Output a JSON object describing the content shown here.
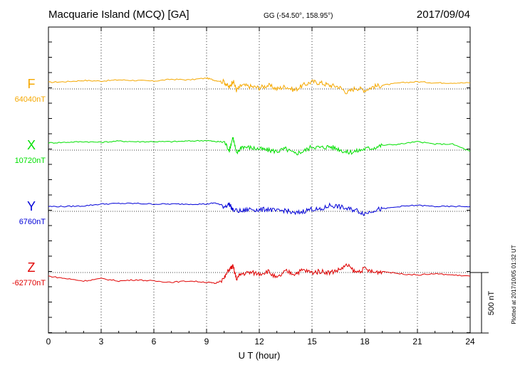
{
  "header": {
    "station": "Macquarie Island (MCQ)  [GA]",
    "coords": "GG (-54.50°, 158.95°)",
    "date": "2017/09/04"
  },
  "footer": {
    "plotted": "Plotted at 2017/10/05 01:32 UT",
    "scale_label": "500 nT"
  },
  "chart_data": {
    "type": "line",
    "xlabel": "U T (hour)",
    "xlim": [
      0,
      24
    ],
    "xticks": [
      "0",
      "3",
      "6",
      "9",
      "12",
      "15",
      "18",
      "21",
      "24"
    ],
    "grid": "dotted vertical lines every 3 hours",
    "y_scale_nT": 500,
    "series": [
      {
        "name": "F",
        "baseline": "64040nT",
        "color": "#f5a800",
        "offset_nT": 50,
        "x": [
          0,
          1,
          2,
          3,
          4,
          5,
          6,
          7,
          8,
          9,
          9.5,
          10,
          10.3,
          10.5,
          10.7,
          11,
          11.5,
          12,
          12.5,
          13,
          13.5,
          14,
          14.5,
          15,
          15.5,
          16,
          16.5,
          17,
          17.5,
          18,
          18.5,
          19,
          20,
          21,
          22,
          23,
          24
        ],
        "y": [
          5,
          10,
          20,
          15,
          25,
          20,
          15,
          30,
          25,
          40,
          20,
          10,
          -40,
          20,
          -60,
          -20,
          -30,
          -40,
          -20,
          -50,
          -30,
          -60,
          -20,
          10,
          0,
          -20,
          -30,
          -80,
          -40,
          -60,
          -30,
          -20,
          0,
          10,
          0,
          0,
          0
        ]
      },
      {
        "name": "X",
        "baseline": "10720nT",
        "color": "#00e000",
        "offset_nT": 50,
        "x": [
          0,
          1,
          2,
          3,
          4,
          5,
          6,
          7,
          8,
          9,
          9.5,
          10,
          10.3,
          10.5,
          10.7,
          11,
          11.5,
          12,
          12.5,
          13,
          13.5,
          14,
          14.5,
          15,
          15.5,
          16,
          16.5,
          17,
          17.5,
          18,
          18.5,
          19,
          20,
          21,
          22,
          23,
          24
        ],
        "y": [
          10,
          15,
          20,
          15,
          25,
          20,
          20,
          20,
          25,
          30,
          20,
          20,
          -50,
          60,
          -80,
          -20,
          -30,
          -40,
          -50,
          -60,
          -40,
          -80,
          -60,
          -20,
          -30,
          -20,
          -40,
          -70,
          -60,
          -40,
          -30,
          -10,
          0,
          20,
          0,
          0,
          -60
        ]
      },
      {
        "name": "Y",
        "baseline": "6760nT",
        "color": "#0000d8",
        "offset_nT": 40,
        "x": [
          0,
          1,
          2,
          3,
          4,
          5,
          6,
          7,
          8,
          9,
          9.5,
          10,
          10.3,
          10.5,
          11,
          11.5,
          12,
          12.5,
          13,
          13.5,
          14,
          14.5,
          15,
          15.5,
          16,
          16.5,
          17,
          17.5,
          18,
          18.5,
          19,
          20,
          21,
          22,
          23,
          24
        ],
        "y": [
          0,
          0,
          5,
          20,
          25,
          25,
          20,
          20,
          20,
          20,
          30,
          0,
          20,
          -30,
          -40,
          -20,
          -30,
          -20,
          -40,
          -30,
          -60,
          -40,
          -20,
          -30,
          10,
          0,
          -20,
          -30,
          -60,
          -30,
          -20,
          0,
          10,
          0,
          0,
          0
        ]
      },
      {
        "name": "Z",
        "baseline": "-62770nT",
        "color": "#e00000",
        "offset_nT": -30,
        "x": [
          0,
          1,
          2,
          3,
          4,
          5,
          6,
          7,
          8,
          9,
          9.5,
          10,
          10.3,
          10.5,
          10.7,
          11,
          11.5,
          12,
          12.5,
          13,
          13.5,
          14,
          14.5,
          15,
          15.5,
          16,
          16.5,
          17,
          17.5,
          18,
          18.5,
          19,
          20,
          21,
          22,
          23,
          24
        ],
        "y": [
          0,
          -20,
          -40,
          -20,
          -40,
          -30,
          -40,
          -50,
          -40,
          -50,
          -60,
          -20,
          60,
          80,
          -20,
          20,
          30,
          20,
          40,
          -20,
          40,
          20,
          50,
          30,
          40,
          30,
          50,
          90,
          30,
          60,
          30,
          40,
          20,
          10,
          20,
          10,
          0
        ]
      }
    ]
  }
}
